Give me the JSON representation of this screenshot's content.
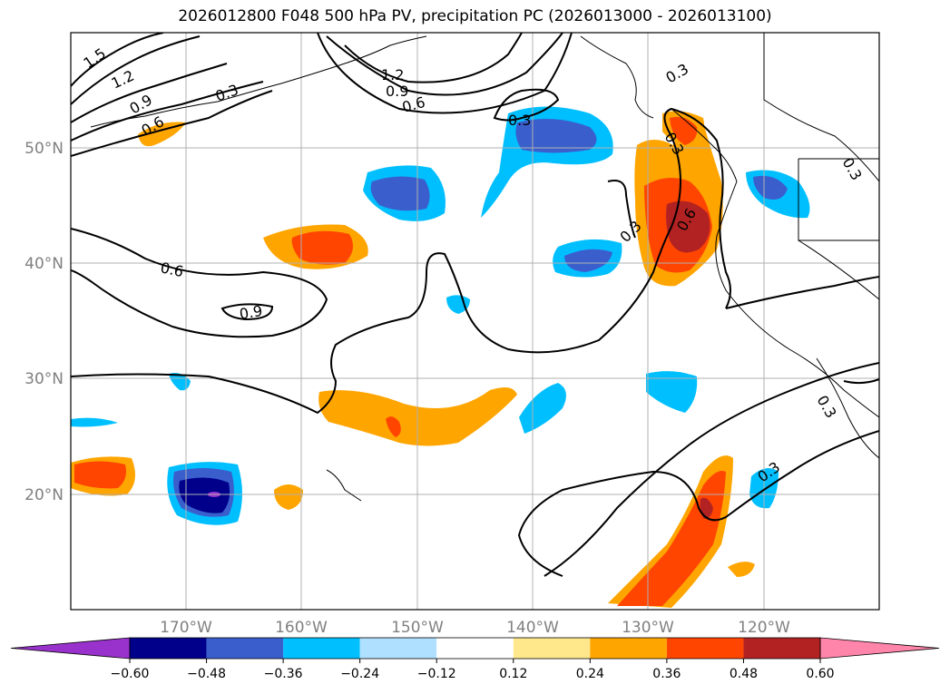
{
  "title": "2026012800 F048 500 hPa PV, precipitation PC (2026013000 - 2026013100)",
  "lat_labels": [
    "50°N",
    "40°N",
    "30°N",
    "20°N"
  ],
  "lon_labels": [
    "170°W",
    "160°W",
    "150°W",
    "140°W",
    "130°W",
    "120°W"
  ],
  "contour_labels": [
    "1.5",
    "1.2",
    "0.9",
    "0.6",
    "0.3",
    "1.2",
    "0.9",
    "0.6",
    "0.3",
    "0.3",
    "0.6",
    "0.3",
    "0.6",
    "0.9",
    "0.3",
    "0.3",
    "0.3",
    "0.3"
  ],
  "colorbar": {
    "ticks": [
      "−0.60",
      "−0.48",
      "−0.36",
      "−0.24",
      "−0.12",
      "0.12",
      "0.24",
      "0.36",
      "0.48",
      "0.60"
    ],
    "colors": [
      "#9932CC",
      "#00008B",
      "#3A5FCD",
      "#00BFFF",
      "#B0E0FF",
      "#FFFFFF",
      "#FFE88C",
      "#FFA500",
      "#FF4500",
      "#B22222",
      "#FF85AA"
    ]
  }
}
